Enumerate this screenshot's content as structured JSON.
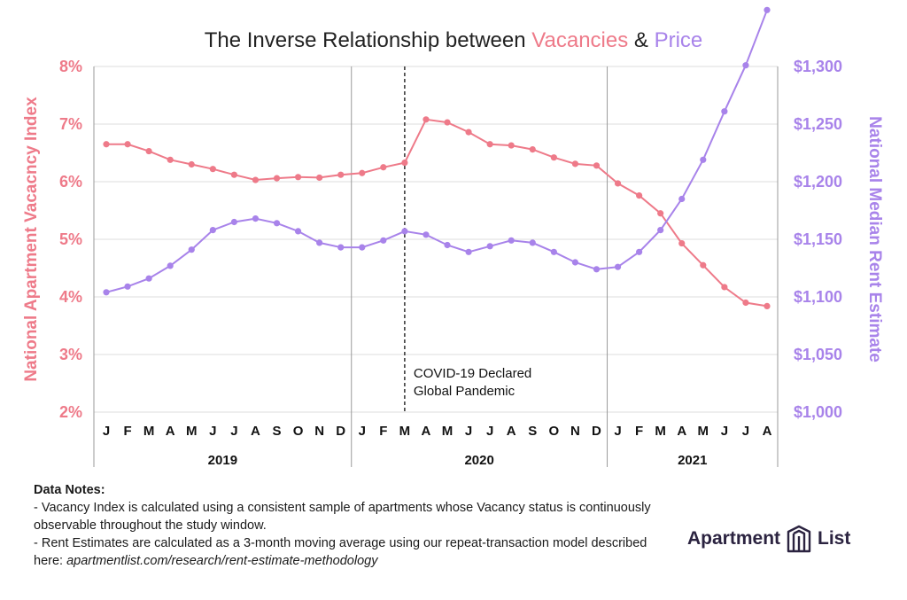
{
  "chart_data": {
    "type": "line",
    "title_parts": [
      {
        "text": "The Inverse Relationship between ",
        "color": "#222222"
      },
      {
        "text": "Vacancies",
        "color": "#ee7a89"
      },
      {
        "text": " & ",
        "color": "#222222"
      },
      {
        "text": "Price",
        "color": "#a883ea"
      }
    ],
    "x": [
      "J",
      "F",
      "M",
      "A",
      "M",
      "J",
      "J",
      "A",
      "S",
      "O",
      "N",
      "D",
      "J",
      "F",
      "M",
      "A",
      "M",
      "J",
      "J",
      "A",
      "S",
      "O",
      "N",
      "D",
      "J",
      "F",
      "M",
      "A",
      "M",
      "J",
      "J",
      "A"
    ],
    "years": [
      "2019",
      "2020",
      "2021"
    ],
    "annotation": [
      "COVID-19 Declared",
      "Global Pandemic"
    ],
    "y_left": {
      "label": "National Apartment Vacacncy Index",
      "ticks": [
        "8%",
        "7%",
        "6%",
        "5%",
        "4%",
        "3%",
        "2%"
      ],
      "ylim": [
        2,
        8
      ],
      "color": "#ee7a89"
    },
    "y_right": {
      "label": "National Median Rent Estimate",
      "ticks": [
        "$1,300",
        "$1,250",
        "$1,200",
        "$1,150",
        "$1,100",
        "$1,050",
        "$1,000"
      ],
      "ylim": [
        1000,
        1300
      ],
      "color": "#a883ea"
    },
    "series": [
      {
        "name": "Vacancies",
        "axis": "left",
        "color": "#ee7a89",
        "values": [
          6.65,
          6.65,
          6.53,
          6.38,
          6.3,
          6.22,
          6.12,
          6.03,
          6.06,
          6.08,
          6.07,
          6.12,
          6.15,
          6.25,
          6.33,
          7.08,
          7.03,
          6.86,
          6.65,
          6.63,
          6.56,
          6.42,
          6.31,
          6.28,
          5.97,
          5.76,
          5.45,
          4.93,
          4.55,
          4.17,
          3.9,
          3.84
        ]
      },
      {
        "name": "Price",
        "axis": "right",
        "color": "#a883ea",
        "values": [
          1104,
          1109,
          1116,
          1127,
          1141,
          1158,
          1165,
          1168,
          1164,
          1157,
          1147,
          1143,
          1143,
          1149,
          1157,
          1154,
          1145,
          1139,
          1144,
          1149,
          1147,
          1139,
          1130,
          1124,
          1126,
          1139,
          1158,
          1185,
          1219,
          1261,
          1301,
          1349
        ]
      }
    ]
  },
  "notes": {
    "header": "Data Notes:",
    "line1": "- Vacancy Index is calculated using a consistent sample of apartments whose Vacancy status is continuously observable throughout the study window.",
    "line2_text": "- Rent Estimates are calculated as a 3-month moving average using our repeat-transaction model described here: ",
    "line2_url": "apartmentlist.com/research/rent-estimate-methodology"
  },
  "logo": {
    "word1": "Apartment",
    "word2": "List",
    "icon": "building-logo-icon"
  }
}
